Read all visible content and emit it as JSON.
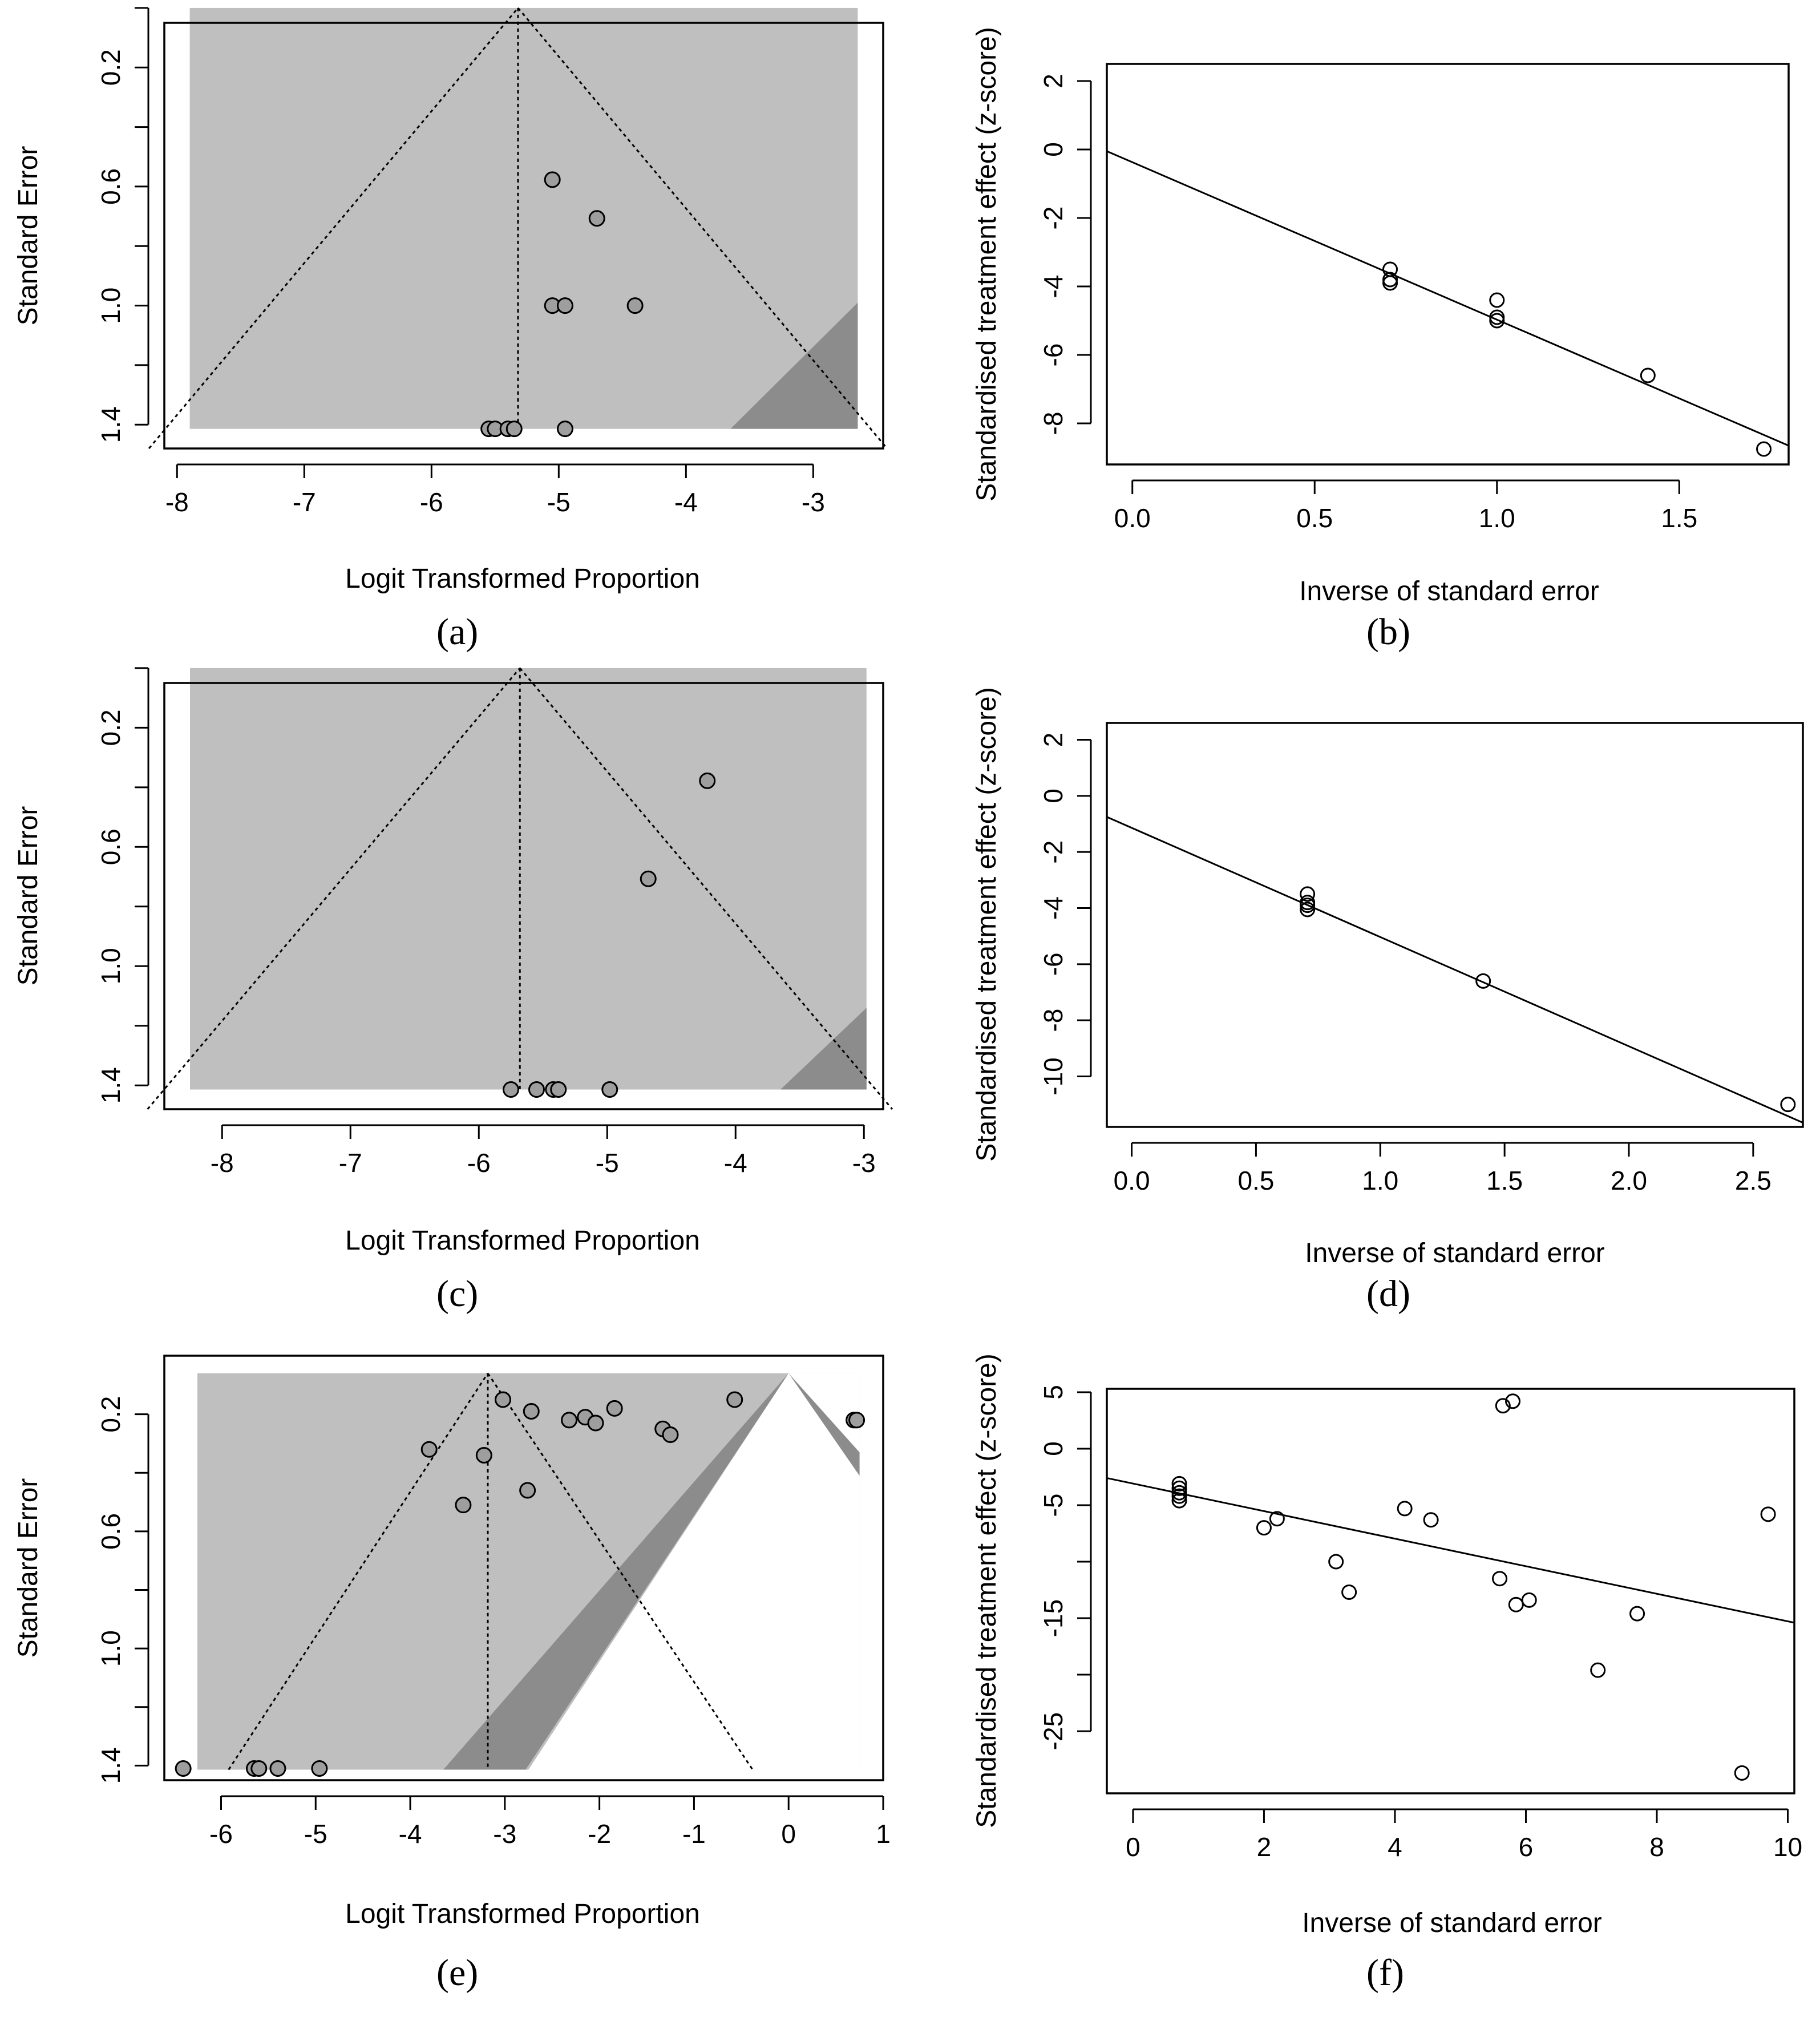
{
  "figure": {
    "captions": [
      "(a)",
      "(b)",
      "(c)",
      "(d)",
      "(e)",
      "(f)"
    ]
  },
  "chart_data": [
    {
      "panel": "a",
      "type": "scatter",
      "subtype": "funnel",
      "xlabel": "Logit Transformed Proportion",
      "ylabel": "Standard Error",
      "xlim": [
        -8.1,
        -2.45
      ],
      "ylim": [
        1.48,
        0.05
      ],
      "y_reversed": true,
      "xticks": [
        -8,
        -7,
        -6,
        -5,
        -4,
        -3
      ],
      "yticks": [
        0.2,
        0.6,
        1.0,
        1.4
      ],
      "ytick_labels": [
        "0.2",
        "0.6",
        "1.0",
        "1.4"
      ],
      "minor_yticks": [
        0.0,
        0.4,
        0.8,
        1.2
      ],
      "center": -5.32,
      "se_max": 1.414,
      "rect_x": [
        -7.9,
        -2.65
      ],
      "dark_region": [
        [
          -3.65,
          1.414
        ],
        [
          -2.65,
          0.99
        ],
        [
          -2.65,
          1.414
        ]
      ],
      "points": [
        [
          -5.05,
          0.577
        ],
        [
          -4.7,
          0.707
        ],
        [
          -5.05,
          1.0
        ],
        [
          -4.95,
          1.0
        ],
        [
          -4.4,
          1.0
        ],
        [
          -5.55,
          1.414
        ],
        [
          -5.5,
          1.414
        ],
        [
          -5.4,
          1.414
        ],
        [
          -5.35,
          1.414
        ],
        [
          -4.95,
          1.414
        ]
      ]
    },
    {
      "panel": "b",
      "type": "scatter",
      "subtype": "egger",
      "xlabel": "Inverse of standard error",
      "ylabel": "Standardised treatment effect (z-score)",
      "xlim": [
        -0.07,
        1.8
      ],
      "ylim": [
        -9.2,
        2.5
      ],
      "xticks": [
        0.0,
        0.5,
        1.0,
        1.5
      ],
      "xtick_labels": [
        "0.0",
        "0.5",
        "1.0",
        "1.5"
      ],
      "yticks": [
        2,
        0,
        -2,
        -4,
        -6,
        -8
      ],
      "fit_line": [
        [
          -0.07,
          -0.05
        ],
        [
          1.8,
          -8.65
        ]
      ],
      "points": [
        [
          0.707,
          -3.5
        ],
        [
          0.707,
          -3.8
        ],
        [
          0.707,
          -3.9
        ],
        [
          1.0,
          -4.4
        ],
        [
          1.0,
          -4.9
        ],
        [
          1.0,
          -5.0
        ],
        [
          1.414,
          -6.6
        ],
        [
          1.732,
          -8.75
        ]
      ]
    },
    {
      "panel": "c",
      "type": "scatter",
      "subtype": "funnel",
      "xlabel": "Logit Transformed Proportion",
      "ylabel": "Standard Error",
      "xlim": [
        -8.45,
        -2.85
      ],
      "ylim": [
        1.48,
        0.05
      ],
      "y_reversed": true,
      "xticks": [
        -8,
        -7,
        -6,
        -5,
        -4,
        -3
      ],
      "yticks": [
        0.2,
        0.6,
        1.0,
        1.4
      ],
      "ytick_labels": [
        "0.2",
        "0.6",
        "1.0",
        "1.4"
      ],
      "minor_yticks": [
        0.0,
        0.4,
        0.8,
        1.2
      ],
      "center": -5.68,
      "se_max": 1.414,
      "rect_x": [
        -8.25,
        -2.98
      ],
      "dark_region": [
        [
          -3.65,
          1.414
        ],
        [
          -2.98,
          1.14
        ],
        [
          -2.98,
          1.414
        ]
      ],
      "points": [
        [
          -4.22,
          0.378
        ],
        [
          -4.68,
          0.707
        ],
        [
          -5.75,
          1.414
        ],
        [
          -5.55,
          1.414
        ],
        [
          -5.42,
          1.414
        ],
        [
          -5.38,
          1.414
        ],
        [
          -4.98,
          1.414
        ]
      ]
    },
    {
      "panel": "d",
      "type": "scatter",
      "subtype": "egger",
      "xlabel": "Inverse of standard error",
      "ylabel": "Standardised treatment effect (z-score)",
      "xlim": [
        -0.1,
        2.7
      ],
      "ylim": [
        -11.8,
        2.6
      ],
      "xticks": [
        0.0,
        0.5,
        1.0,
        1.5,
        2.0,
        2.5
      ],
      "xtick_labels": [
        "0.0",
        "0.5",
        "1.0",
        "1.5",
        "2.0",
        "2.5"
      ],
      "yticks": [
        2,
        0,
        -2,
        -4,
        -6,
        -8,
        -10
      ],
      "fit_line": [
        [
          -0.1,
          -0.75
        ],
        [
          2.7,
          -11.65
        ]
      ],
      "points": [
        [
          0.707,
          -3.5
        ],
        [
          0.707,
          -3.8
        ],
        [
          0.707,
          -3.9
        ],
        [
          0.707,
          -4.05
        ],
        [
          1.414,
          -6.6
        ],
        [
          2.64,
          -11.0
        ]
      ]
    },
    {
      "panel": "e",
      "type": "scatter",
      "subtype": "funnel",
      "xlabel": "Logit Transformed Proportion",
      "ylabel": "Standard Error",
      "xlim": [
        -6.6,
        1.0
      ],
      "ylim": [
        1.45,
        0.0
      ],
      "y_reversed": true,
      "xticks": [
        -6,
        -5,
        -4,
        -3,
        -2,
        -1,
        0,
        1
      ],
      "yticks": [
        0.2,
        0.6,
        1.0,
        1.4
      ],
      "ytick_labels": [
        "0.2",
        "0.6",
        "1.0",
        "1.4"
      ],
      "minor_yticks": [
        0.4,
        0.8,
        1.2
      ],
      "center": -3.18,
      "se_max": 1.414,
      "se_top": 0.06,
      "rect_x": [
        -6.25,
        0.75
      ],
      "rect_y": [
        0.06,
        1.414
      ],
      "white_region": [
        [
          0.0,
          0.06
        ],
        [
          -2.75,
          1.414
        ],
        [
          0.75,
          1.414
        ],
        [
          0.75,
          0.06
        ]
      ],
      "dark_region": [
        [
          0.0,
          0.06
        ],
        [
          -3.65,
          1.414
        ],
        [
          -2.78,
          1.414
        ],
        [
          0.0,
          0.06
        ],
        [
          0.75,
          0.41
        ],
        [
          0.75,
          0.33
        ]
      ],
      "dark_region_split": 3,
      "funnel_lines": [
        [
          [
            -5.92,
            1.414
          ],
          [
            -3.18,
            0.06
          ]
        ],
        [
          [
            -3.18,
            0.06
          ],
          [
            -0.38,
            1.414
          ]
        ]
      ],
      "points": [
        [
          -3.02,
          0.15
        ],
        [
          -2.72,
          0.19
        ],
        [
          -2.32,
          0.22
        ],
        [
          -2.15,
          0.21
        ],
        [
          -2.04,
          0.23
        ],
        [
          -1.84,
          0.18
        ],
        [
          -0.57,
          0.15
        ],
        [
          -1.33,
          0.25
        ],
        [
          -1.25,
          0.27
        ],
        [
          0.69,
          0.22
        ],
        [
          0.72,
          0.22
        ],
        [
          -3.8,
          0.32
        ],
        [
          -3.22,
          0.34
        ],
        [
          -3.44,
          0.51
        ],
        [
          -2.76,
          0.46
        ],
        [
          -6.4,
          1.41
        ],
        [
          -5.65,
          1.41
        ],
        [
          -5.6,
          1.41
        ],
        [
          -5.4,
          1.41
        ],
        [
          -4.96,
          1.41
        ]
      ]
    },
    {
      "panel": "f",
      "type": "scatter",
      "subtype": "egger",
      "xlabel": "Inverse of standard error",
      "ylabel": "Standardised treatment effect (z-score)",
      "xlim": [
        -0.4,
        10.1
      ],
      "ylim": [
        -30.5,
        5.3
      ],
      "xticks": [
        0,
        2,
        4,
        6,
        8,
        10
      ],
      "yticks": [
        5,
        0,
        -5,
        -15,
        -25
      ],
      "ytick_labels": [
        "5",
        "0",
        "-5",
        "-15",
        "-25"
      ],
      "minor_yticks": [
        -10,
        -20
      ],
      "fit_line": [
        [
          -0.4,
          -2.6
        ],
        [
          10.1,
          -15.4
        ]
      ],
      "points": [
        [
          0.707,
          -3.5
        ],
        [
          0.707,
          -3.9
        ],
        [
          0.707,
          -4.2
        ],
        [
          0.707,
          -4.6
        ],
        [
          0.707,
          -3.1
        ],
        [
          2.0,
          -7.0
        ],
        [
          2.2,
          -6.2
        ],
        [
          3.1,
          -10.0
        ],
        [
          3.3,
          -12.7
        ],
        [
          4.15,
          -5.3
        ],
        [
          4.55,
          -6.3
        ],
        [
          5.6,
          -11.5
        ],
        [
          5.85,
          -13.8
        ],
        [
          6.05,
          -13.4
        ],
        [
          5.65,
          3.8
        ],
        [
          5.8,
          4.2
        ],
        [
          7.1,
          -19.6
        ],
        [
          7.7,
          -14.6
        ],
        [
          9.3,
          -28.7
        ],
        [
          9.7,
          -5.8
        ]
      ]
    }
  ]
}
